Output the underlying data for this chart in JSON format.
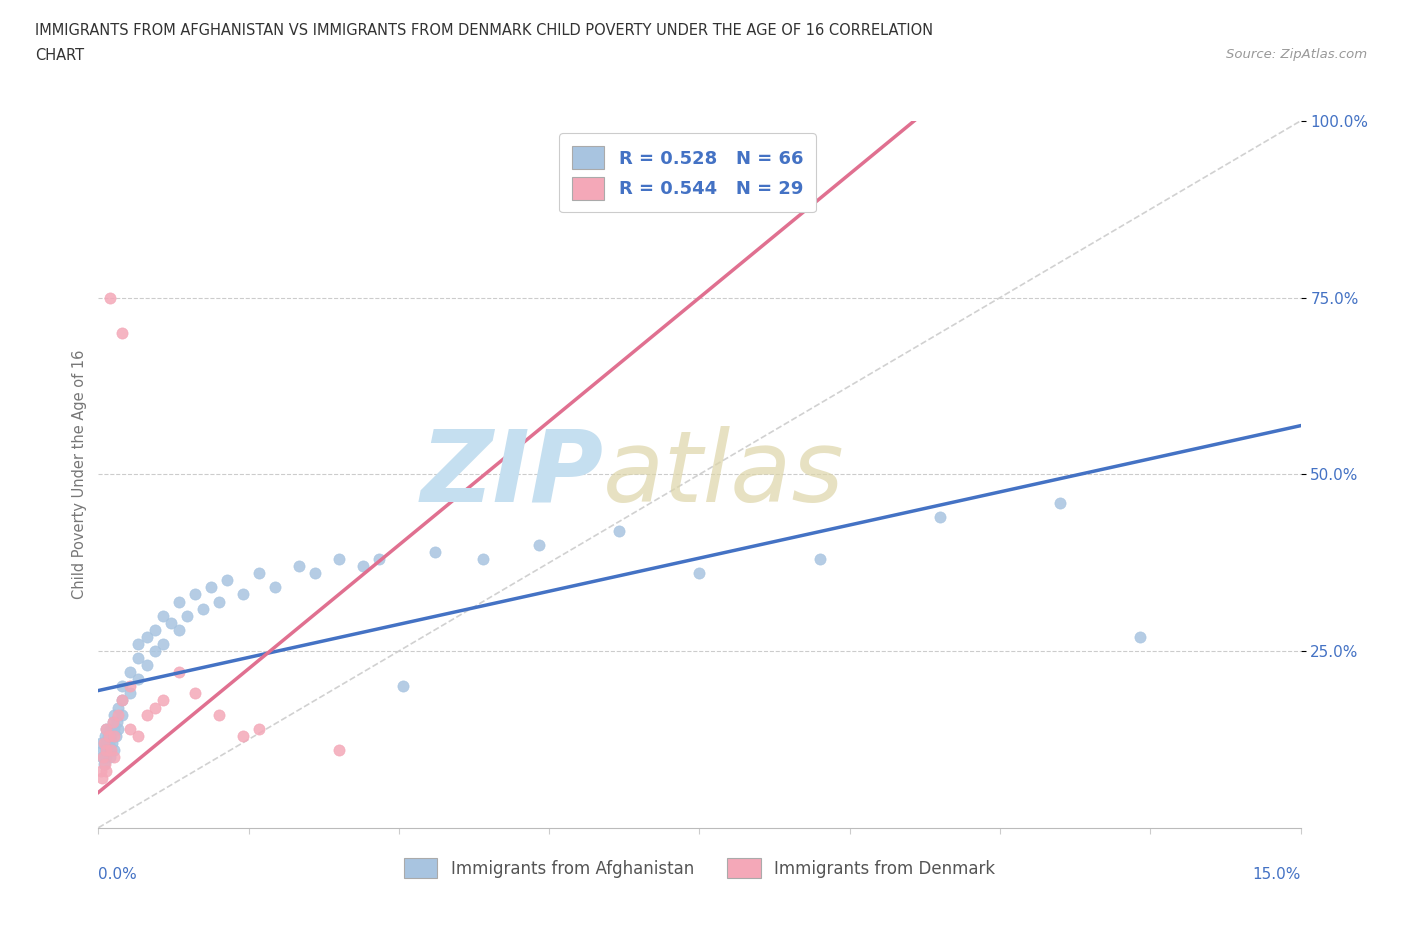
{
  "title_line1": "IMMIGRANTS FROM AFGHANISTAN VS IMMIGRANTS FROM DENMARK CHILD POVERTY UNDER THE AGE OF 16 CORRELATION",
  "title_line2": "CHART",
  "source_text": "Source: ZipAtlas.com",
  "ylabel": "Child Poverty Under the Age of 16",
  "afghanistan_color": "#a8c4e0",
  "denmark_color": "#f4a8b8",
  "afghanistan_line_color": "#4472c4",
  "denmark_line_color": "#e07090",
  "diagonal_color": "#cccccc",
  "R_afghanistan": "0.528",
  "N_afghanistan": "66",
  "R_denmark": "0.544",
  "N_denmark": "29",
  "legend_label_afghanistan": "Immigrants from Afghanistan",
  "legend_label_denmark": "Immigrants from Denmark",
  "legend_text_color": "#4472c4",
  "title_color": "#333333",
  "source_color": "#999999",
  "axis_label_color": "#4472c4",
  "ylabel_color": "#777777",
  "grid_color": "#cccccc",
  "background_color": "#ffffff",
  "x_min": 0.0,
  "x_max": 0.15,
  "y_min": 0.0,
  "y_max": 1.0,
  "afghanistan_x": [
    0.0003,
    0.0005,
    0.0006,
    0.0007,
    0.0008,
    0.0008,
    0.0009,
    0.001,
    0.001,
    0.001,
    0.0012,
    0.0013,
    0.0014,
    0.0015,
    0.0015,
    0.0016,
    0.0017,
    0.0018,
    0.0019,
    0.002,
    0.002,
    0.0022,
    0.0023,
    0.0025,
    0.0025,
    0.003,
    0.003,
    0.003,
    0.004,
    0.004,
    0.005,
    0.005,
    0.005,
    0.006,
    0.006,
    0.007,
    0.007,
    0.008,
    0.008,
    0.009,
    0.01,
    0.01,
    0.011,
    0.012,
    0.013,
    0.014,
    0.015,
    0.016,
    0.018,
    0.02,
    0.022,
    0.025,
    0.027,
    0.03,
    0.033,
    0.035,
    0.038,
    0.042,
    0.048,
    0.055,
    0.065,
    0.075,
    0.09,
    0.105,
    0.12,
    0.13
  ],
  "afghanistan_y": [
    0.12,
    0.1,
    0.11,
    0.09,
    0.13,
    0.1,
    0.12,
    0.11,
    0.14,
    0.1,
    0.13,
    0.12,
    0.11,
    0.1,
    0.14,
    0.13,
    0.12,
    0.15,
    0.14,
    0.11,
    0.16,
    0.13,
    0.15,
    0.14,
    0.17,
    0.16,
    0.18,
    0.2,
    0.22,
    0.19,
    0.21,
    0.24,
    0.26,
    0.23,
    0.27,
    0.25,
    0.28,
    0.26,
    0.3,
    0.29,
    0.28,
    0.32,
    0.3,
    0.33,
    0.31,
    0.34,
    0.32,
    0.35,
    0.33,
    0.36,
    0.34,
    0.37,
    0.36,
    0.38,
    0.37,
    0.38,
    0.2,
    0.39,
    0.38,
    0.4,
    0.42,
    0.36,
    0.38,
    0.44,
    0.46,
    0.27
  ],
  "denmark_x": [
    0.0003,
    0.0005,
    0.0006,
    0.0007,
    0.0008,
    0.001,
    0.001,
    0.001,
    0.0013,
    0.0015,
    0.0016,
    0.0018,
    0.002,
    0.002,
    0.0025,
    0.003,
    0.003,
    0.004,
    0.004,
    0.005,
    0.006,
    0.007,
    0.008,
    0.01,
    0.012,
    0.015,
    0.018,
    0.02,
    0.03
  ],
  "denmark_y": [
    0.08,
    0.07,
    0.1,
    0.12,
    0.09,
    0.11,
    0.14,
    0.08,
    0.13,
    0.75,
    0.11,
    0.15,
    0.13,
    0.1,
    0.16,
    0.18,
    0.7,
    0.2,
    0.14,
    0.13,
    0.16,
    0.17,
    0.18,
    0.22,
    0.19,
    0.16,
    0.13,
    0.14,
    0.11
  ]
}
